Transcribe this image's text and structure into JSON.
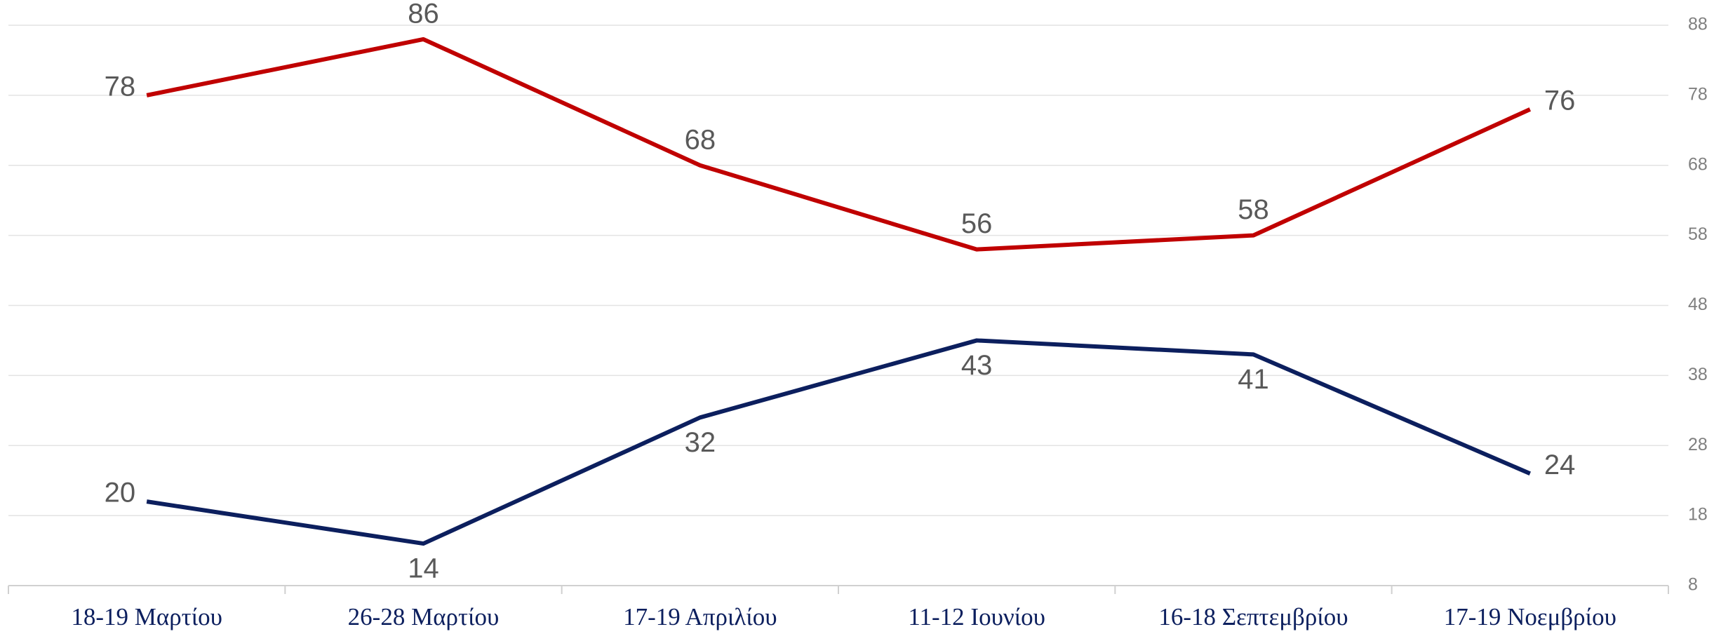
{
  "chart_data": {
    "type": "line",
    "categories": [
      "18-19 Μαρτίου",
      "26-28 Μαρτίου",
      "17-19 Απριλίου",
      "11-12 Ιουνίου",
      "16-18 Σεπτεμβρίου",
      "17-19 Νοεμβρίου"
    ],
    "series": [
      {
        "color": "#c00000",
        "values": [
          78,
          86,
          68,
          56,
          58,
          76
        ]
      },
      {
        "color": "#0c1f5e",
        "values": [
          20,
          14,
          32,
          43,
          41,
          24
        ]
      }
    ],
    "ylim": [
      8,
      88
    ],
    "yticks": [
      8,
      18,
      28,
      38,
      48,
      58,
      68,
      78,
      88
    ],
    "grid": true,
    "y_axis_side": "right"
  }
}
